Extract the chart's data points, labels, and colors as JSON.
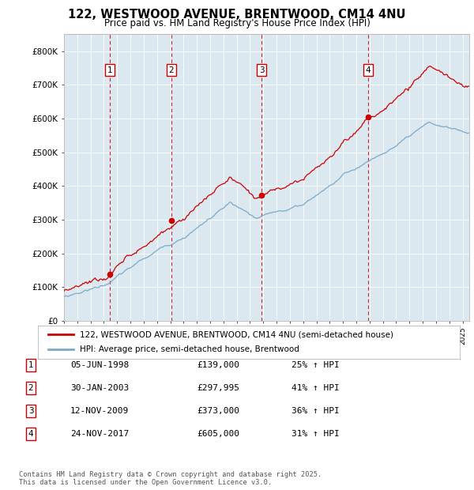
{
  "title_line1": "122, WESTWOOD AVENUE, BRENTWOOD, CM14 4NU",
  "title_line2": "Price paid vs. HM Land Registry's House Price Index (HPI)",
  "plot_bg_color": "#dce8f0",
  "yticks": [
    0,
    100000,
    200000,
    300000,
    400000,
    500000,
    600000,
    700000,
    800000
  ],
  "ytick_labels": [
    "£0",
    "£100K",
    "£200K",
    "£300K",
    "£400K",
    "£500K",
    "£600K",
    "£700K",
    "£800K"
  ],
  "ylim": [
    0,
    850000
  ],
  "xlim_start": 1995.0,
  "xlim_end": 2025.5,
  "sale_dates": [
    1998.43,
    2003.08,
    2009.87,
    2017.9
  ],
  "sale_prices": [
    139000,
    297995,
    373000,
    605000
  ],
  "sale_labels": [
    "1",
    "2",
    "3",
    "4"
  ],
  "legend_line1": "122, WESTWOOD AVENUE, BRENTWOOD, CM14 4NU (semi-detached house)",
  "legend_line2": "HPI: Average price, semi-detached house, Brentwood",
  "table_rows": [
    [
      "1",
      "05-JUN-1998",
      "£139,000",
      "25% ↑ HPI"
    ],
    [
      "2",
      "30-JAN-2003",
      "£297,995",
      "41% ↑ HPI"
    ],
    [
      "3",
      "12-NOV-2009",
      "£373,000",
      "36% ↑ HPI"
    ],
    [
      "4",
      "24-NOV-2017",
      "£605,000",
      "31% ↑ HPI"
    ]
  ],
  "footer": "Contains HM Land Registry data © Crown copyright and database right 2025.\nThis data is licensed under the Open Government Licence v3.0.",
  "red_color": "#cc0000",
  "blue_color": "#7aaacb"
}
